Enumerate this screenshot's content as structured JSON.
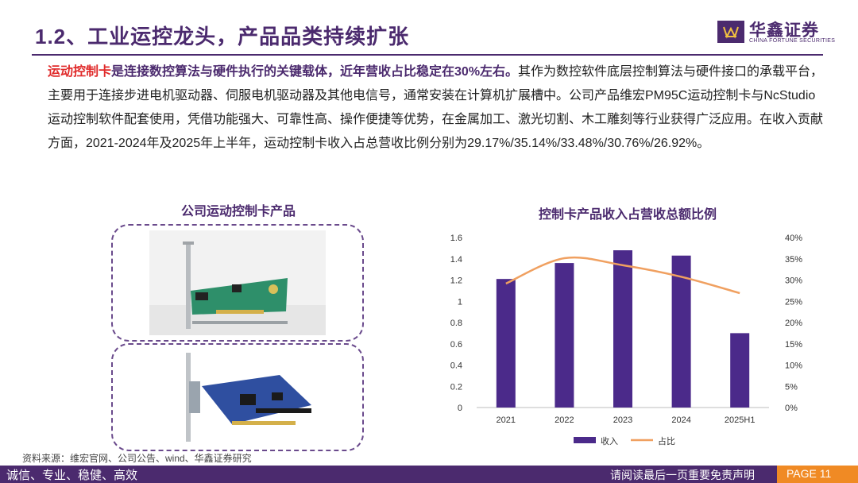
{
  "header": {
    "title": "1.2、工业运控龙头，产品品类持续扩张",
    "logo_cn": "华鑫证券",
    "logo_en": "CHINA FORTUNE SECURITIES"
  },
  "body": {
    "highlight_red": "运动控制卡",
    "highlight_purple": "是连接数控算法与硬件执行的关键载体，近年营收占比稳定在30%左右。",
    "text": "其作为数控软件底层控制算法与硬件接口的承载平台，主要用于连接步进电机驱动器、伺服电机驱动器及其他电信号，通常安装在计算机扩展槽中。公司产品维宏PM95C运动控制卡与NcStudio运动控制软件配套使用，凭借功能强大、可靠性高、操作便捷等优势，在金属加工、激光切割、木工雕刻等行业获得广泛应用。在收入贡献方面，2021-2024年及2025年上半年，运动控制卡收入占总营收比例分别为29.17%/35.14%/33.48%/30.76%/26.92%。"
  },
  "left_panel": {
    "title": "公司运动控制卡产品"
  },
  "chart_data": {
    "type": "bar",
    "title": "控制卡产品收入占营收总额比例",
    "categories": [
      "2021",
      "2022",
      "2023",
      "2024",
      "2025H1"
    ],
    "series": [
      {
        "name": "收入",
        "type": "bar",
        "axis": "left",
        "values": [
          1.21,
          1.36,
          1.48,
          1.43,
          0.7
        ],
        "color": "#4b2a8a"
      },
      {
        "name": "占比",
        "type": "line",
        "axis": "right",
        "values": [
          29.17,
          35.14,
          33.48,
          30.76,
          26.92
        ],
        "color": "#f0a060"
      }
    ],
    "y_left": {
      "min": 0,
      "max": 1.6,
      "ticks": [
        "0",
        "0.2",
        "0.4",
        "0.6",
        "0.8",
        "1",
        "1.2",
        "1.4",
        "1.6"
      ]
    },
    "y_right": {
      "min": 0,
      "max": 40,
      "ticks": [
        "0%",
        "5%",
        "10%",
        "15%",
        "20%",
        "25%",
        "30%",
        "35%",
        "40%"
      ]
    },
    "grid": false,
    "legend_position": "bottom"
  },
  "source": "资料来源：维宏官网、公司公告、wind、华鑫证券研究",
  "footer": {
    "slogan": "诚信、专业、稳健、高效",
    "disclaimer": "请阅读最后一页重要免责声明",
    "page": "PAGE 11"
  }
}
